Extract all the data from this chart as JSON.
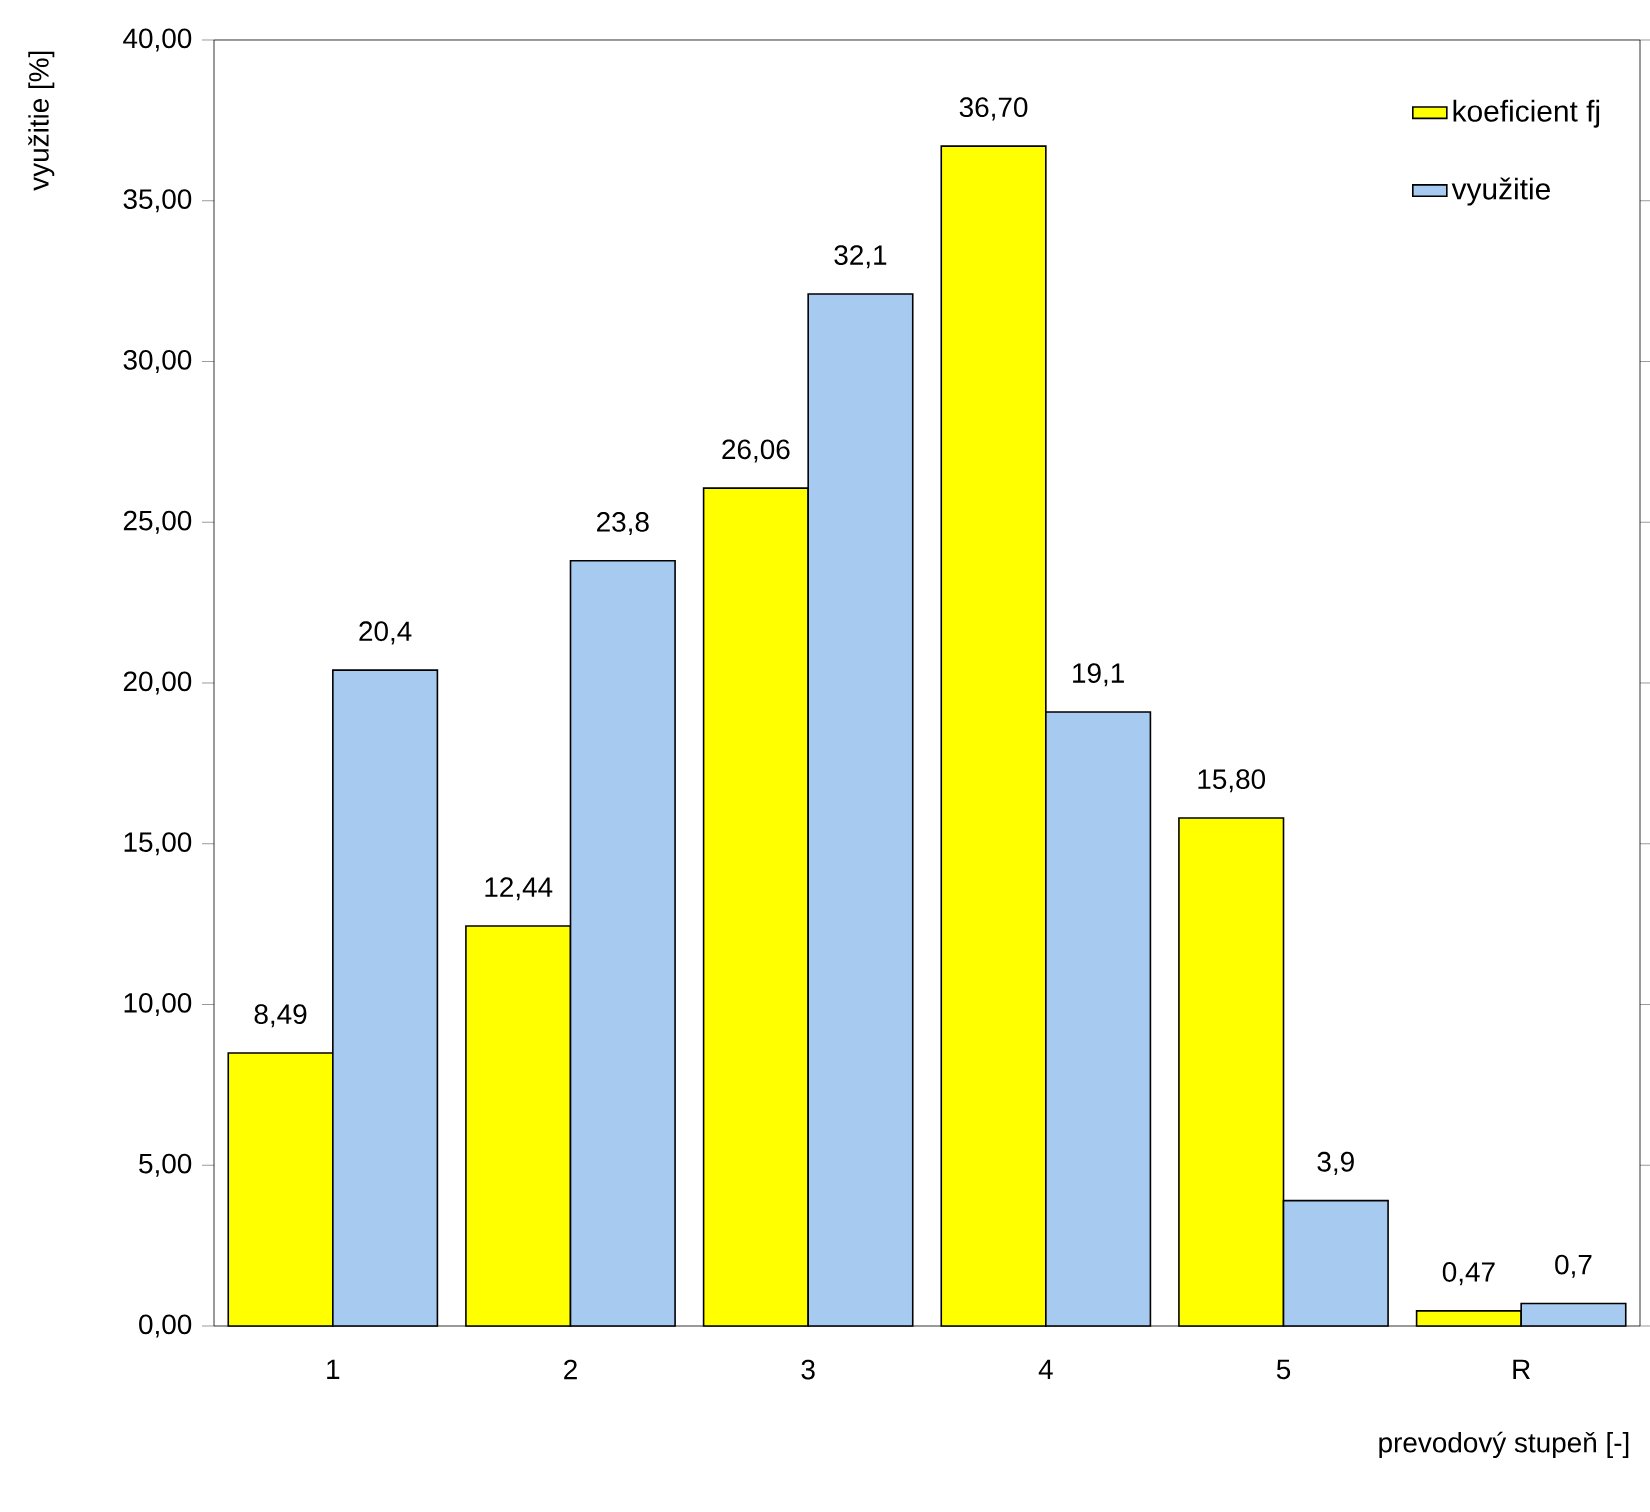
{
  "chart_data": {
    "type": "bar",
    "xlabel": "prevodový stupeň [-]",
    "ylabel": "využitie [%]",
    "categories": [
      "1",
      "2",
      "3",
      "4",
      "5",
      "R"
    ],
    "series": [
      {
        "name": "koeficient fj",
        "color": "#ffff00",
        "values": [
          8.49,
          12.44,
          26.06,
          36.7,
          15.8,
          0.47
        ],
        "value_labels": [
          "8,49",
          "12,44",
          "26,06",
          "36,70",
          "15,80",
          "0,47"
        ]
      },
      {
        "name": "využitie",
        "color": "#a6caf0",
        "values": [
          20.4,
          23.8,
          32.1,
          19.1,
          3.9,
          0.7
        ],
        "value_labels": [
          "20,4",
          "23,8",
          "32,1",
          "19,1",
          "3,9",
          "0,7"
        ]
      }
    ],
    "ylim": [
      0,
      40
    ],
    "yticks": [
      {
        "value": 0,
        "label": "0,00"
      },
      {
        "value": 5,
        "label": "5,00"
      },
      {
        "value": 10,
        "label": "10,00"
      },
      {
        "value": 15,
        "label": "15,00"
      },
      {
        "value": 20,
        "label": "20,00"
      },
      {
        "value": 25,
        "label": "25,00"
      },
      {
        "value": 30,
        "label": "30,00"
      },
      {
        "value": 35,
        "label": "35,00"
      },
      {
        "value": 40,
        "label": "40,00"
      }
    ],
    "legend": "top right"
  }
}
